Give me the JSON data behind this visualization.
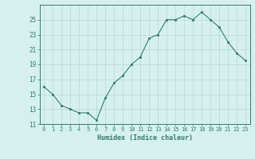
{
  "x": [
    0,
    1,
    2,
    3,
    4,
    5,
    6,
    7,
    8,
    9,
    10,
    11,
    12,
    13,
    14,
    15,
    16,
    17,
    18,
    19,
    20,
    21,
    22,
    23
  ],
  "y": [
    16,
    15,
    13.5,
    13,
    12.5,
    12.5,
    11.5,
    14.5,
    16.5,
    17.5,
    19,
    20,
    22.5,
    23,
    25,
    25,
    25.5,
    25,
    26,
    25,
    24,
    22,
    20.5,
    19.5
  ],
  "line_color": "#2e7d6e",
  "marker_color": "#2e7d6e",
  "bg_color": "#d6f0f0",
  "grid_color": "#c0d8d8",
  "tick_color": "#2e7d6e",
  "xlabel": "Humidex (Indice chaleur)",
  "xlim": [
    -0.5,
    23.5
  ],
  "ylim": [
    11,
    27
  ],
  "yticks": [
    11,
    13,
    15,
    17,
    19,
    21,
    23,
    25
  ],
  "xticks": [
    0,
    1,
    2,
    3,
    4,
    5,
    6,
    7,
    8,
    9,
    10,
    11,
    12,
    13,
    14,
    15,
    16,
    17,
    18,
    19,
    20,
    21,
    22,
    23
  ],
  "xtick_labels": [
    "0",
    "1",
    "2",
    "3",
    "4",
    "5",
    "6",
    "7",
    "8",
    "9",
    "10",
    "11",
    "12",
    "13",
    "14",
    "15",
    "16",
    "17",
    "18",
    "19",
    "20",
    "21",
    "22",
    "23"
  ]
}
